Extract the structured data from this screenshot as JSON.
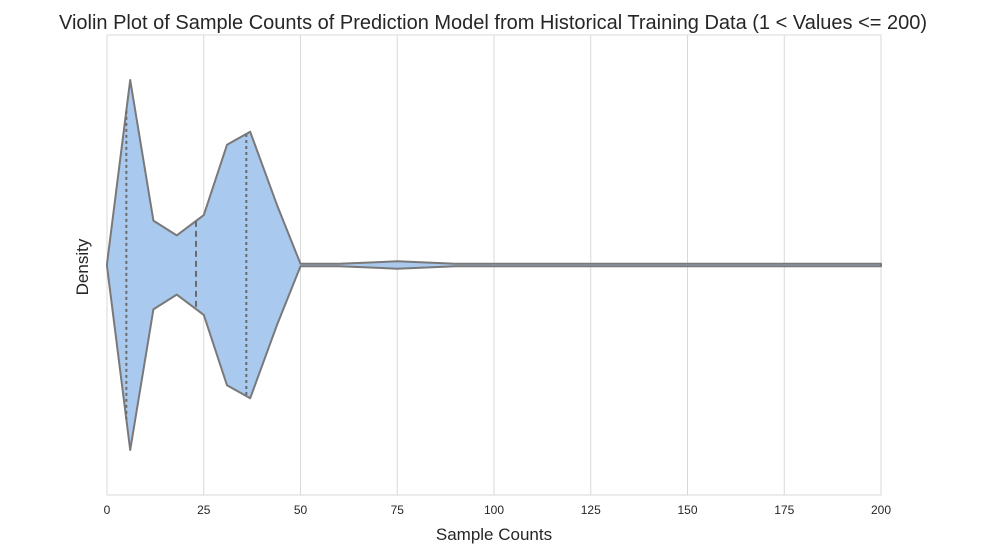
{
  "chart_data": {
    "type": "violin",
    "title": "Violin Plot of Sample Counts of Prediction Model from Historical Training Data (1 < Values <= 200)",
    "xlabel": "Sample Counts",
    "ylabel": "Density",
    "xlim": [
      0,
      200
    ],
    "xticks": [
      0,
      25,
      50,
      75,
      100,
      125,
      150,
      175,
      200
    ],
    "grid": "vertical",
    "colors": {
      "fill": "#aac9ee",
      "edge": "#797979",
      "quartile": "#6a6a6a",
      "grid": "#d9d9d9"
    },
    "density_profile": [
      {
        "x": 0,
        "half_width": 0.0
      },
      {
        "x": 6,
        "half_width": 1.0
      },
      {
        "x": 12,
        "half_width": 0.24
      },
      {
        "x": 18,
        "half_width": 0.16
      },
      {
        "x": 25,
        "half_width": 0.27
      },
      {
        "x": 31,
        "half_width": 0.65
      },
      {
        "x": 37,
        "half_width": 0.72
      },
      {
        "x": 44,
        "half_width": 0.32
      },
      {
        "x": 50,
        "half_width": 0.0
      },
      {
        "x": 60,
        "half_width": 0.0
      },
      {
        "x": 75,
        "half_width": 0.02
      },
      {
        "x": 90,
        "half_width": 0.0
      },
      {
        "x": 100,
        "half_width": 0.0
      },
      {
        "x": 118,
        "half_width": 0.005
      },
      {
        "x": 130,
        "half_width": 0.0
      },
      {
        "x": 200,
        "half_width": 0.0
      }
    ],
    "quartiles": {
      "q1": 5,
      "median": 23,
      "q3": 36
    }
  }
}
